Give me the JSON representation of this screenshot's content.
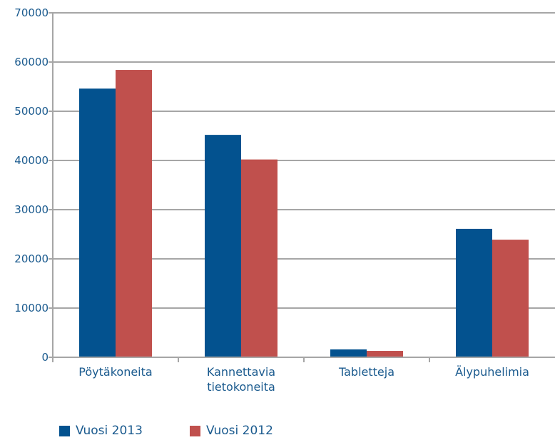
{
  "chart_data": {
    "type": "bar",
    "categories": [
      [
        "Pöytäkoneita"
      ],
      [
        "Kannettavia",
        "tietokoneita"
      ],
      [
        "Tabletteja"
      ],
      [
        "Älypuhelimia"
      ]
    ],
    "series": [
      {
        "name": "Vuosi 2013",
        "color": "#03528f",
        "values": [
          54600,
          45200,
          1600,
          26100
        ]
      },
      {
        "name": "Vuosi 2012",
        "color": "#c0504d",
        "values": [
          58400,
          40200,
          1300,
          23900
        ]
      }
    ],
    "ylim": [
      0,
      70000
    ],
    "yticks": [
      0,
      10000,
      20000,
      30000,
      40000,
      50000,
      60000,
      70000
    ],
    "grid": true,
    "legend_position": "bottom-left"
  }
}
